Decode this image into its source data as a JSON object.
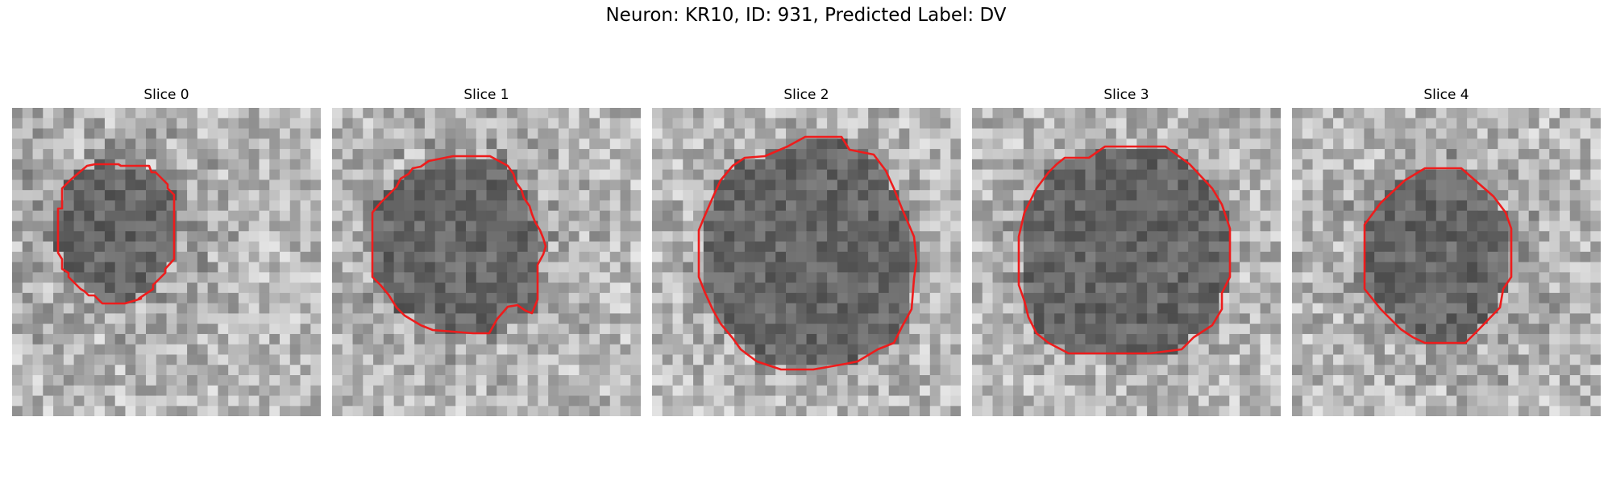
{
  "figure": {
    "title": "Neuron: KR10, ID: 931, Predicted Label: DV",
    "outline_color": "#ee1c1c"
  },
  "panels": [
    {
      "title": "Slice 0"
    },
    {
      "title": "Slice 1"
    },
    {
      "title": "Slice 2"
    },
    {
      "title": "Slice 3"
    },
    {
      "title": "Slice 4"
    }
  ]
}
